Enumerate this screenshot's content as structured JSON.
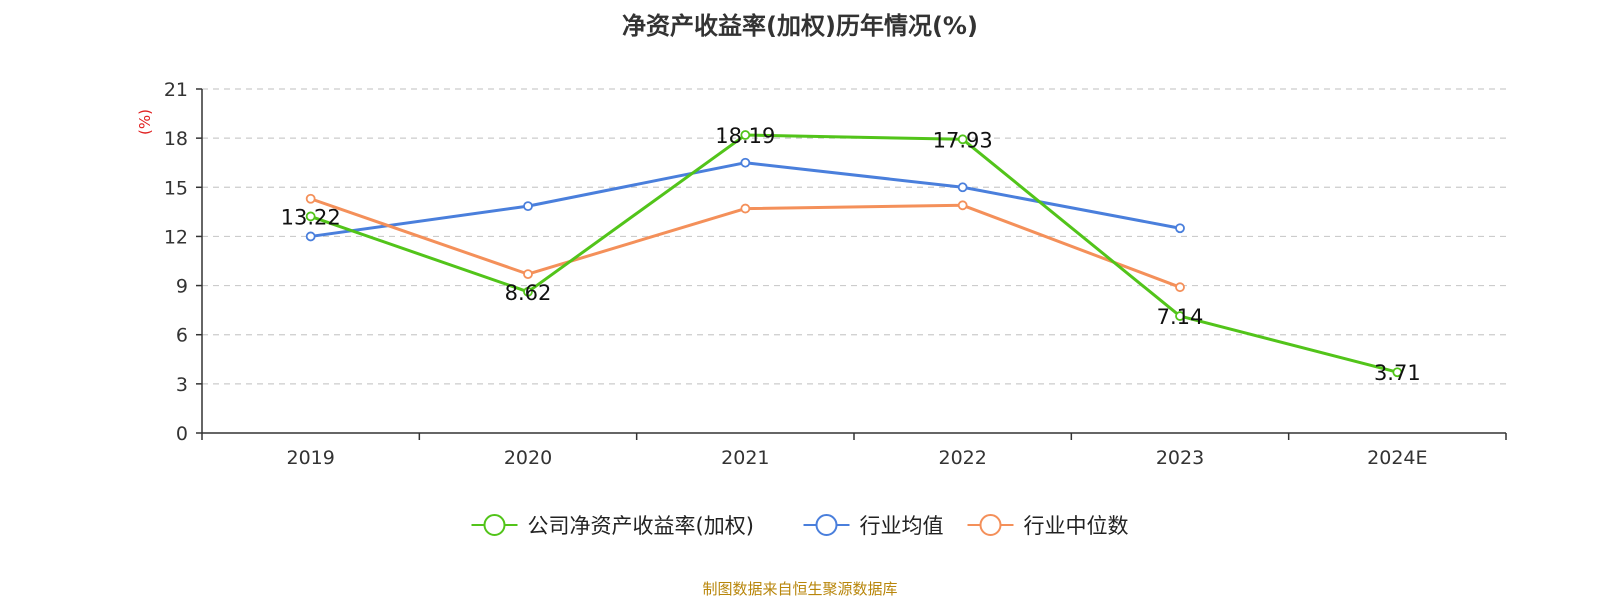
{
  "title": "净资产收益率(加权)历年情况(%)",
  "source_note": "制图数据来自恒生聚源数据库",
  "colors": {
    "unit_label": "#e02020",
    "axis": "#333333",
    "grid": "#cccccc",
    "source_note": "#b8860b"
  },
  "chart_data": {
    "type": "line",
    "unit_label": "(%)",
    "categories": [
      "2019",
      "2020",
      "2021",
      "2022",
      "2023",
      "2024E"
    ],
    "ylim": [
      0,
      21
    ],
    "yticks": [
      0,
      3,
      6,
      9,
      12,
      15,
      18,
      21
    ],
    "grid": true,
    "legend_position": "bottom",
    "series": [
      {
        "name": "公司净资产收益率(加权)",
        "color": "#52c41a",
        "values": [
          13.22,
          8.62,
          18.19,
          17.93,
          7.14,
          3.71
        ],
        "data_labels": [
          "13.22",
          "8.62",
          "18.19",
          "17.93",
          "7.14",
          "3.71"
        ]
      },
      {
        "name": "行业均值",
        "color": "#4a7fdc",
        "values": [
          12.0,
          13.85,
          16.5,
          15.0,
          12.5,
          null
        ]
      },
      {
        "name": "行业中位数",
        "color": "#f4905a",
        "values": [
          14.3,
          9.7,
          13.7,
          13.9,
          8.9,
          null
        ]
      }
    ]
  }
}
